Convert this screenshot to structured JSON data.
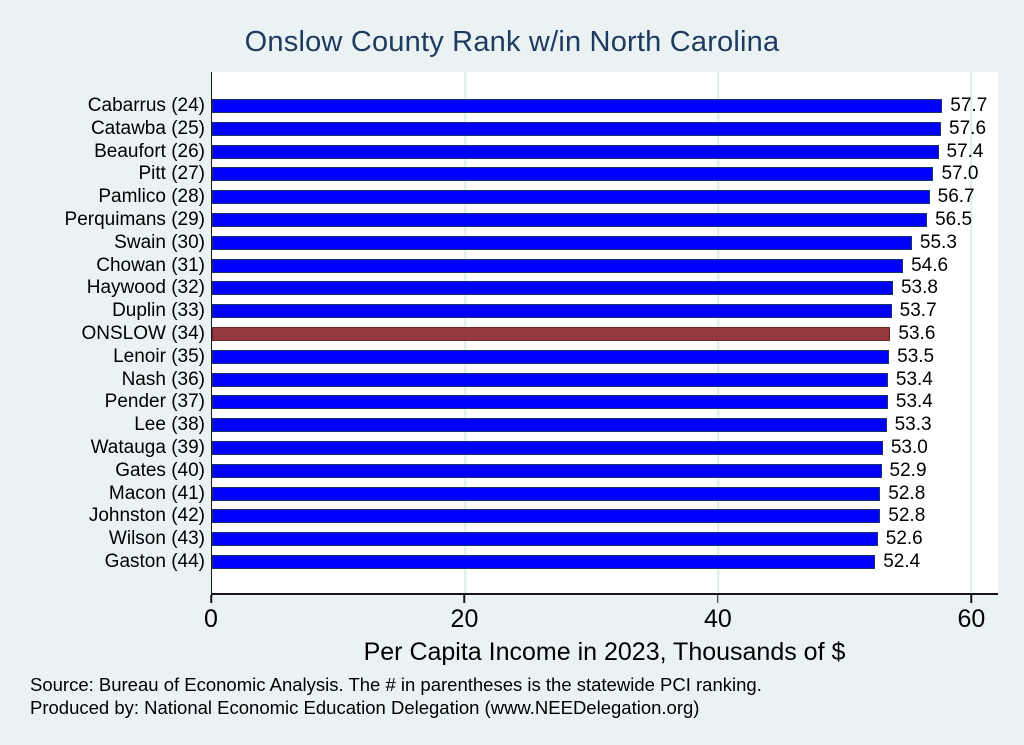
{
  "title": "Onslow County Rank w/in North Carolina",
  "chart_data": {
    "type": "bar",
    "orientation": "horizontal",
    "title": "Onslow County Rank w/in North Carolina",
    "xlabel": "Per Capita Income in 2023, Thousands of $",
    "xlim": [
      0,
      62.1
    ],
    "xticks": [
      0,
      20,
      40,
      60
    ],
    "grid": true,
    "legend": "none",
    "value_label_decimals": 1,
    "categories": [
      "Cabarrus (24)",
      "Catawba (25)",
      "Beaufort (26)",
      "Pitt (27)",
      "Pamlico (28)",
      "Perquimans (29)",
      "Swain (30)",
      "Chowan (31)",
      "Haywood (32)",
      "Duplin (33)",
      "ONSLOW (34)",
      "Lenoir (35)",
      "Nash (36)",
      "Pender (37)",
      "Lee (38)",
      "Watauga (39)",
      "Gates (40)",
      "Macon (41)",
      "Johnston (42)",
      "Wilson (43)",
      "Gaston (44)"
    ],
    "values": [
      57.7,
      57.6,
      57.4,
      57.0,
      56.7,
      56.5,
      55.3,
      54.6,
      53.8,
      53.7,
      53.6,
      53.5,
      53.4,
      53.4,
      53.3,
      53.0,
      52.9,
      52.8,
      52.8,
      52.6,
      52.4
    ],
    "highlight_index": 10,
    "highlight_category": "ONSLOW (34)"
  },
  "footer": {
    "line1": "Source: Bureau of Economic Analysis. The # in parentheses is the statewide PCI ranking.",
    "line2": "Produced by: National Economic Education Delegation (www.NEEDelegation.org)"
  },
  "colors": {
    "background": "#eaf2f3",
    "plot_background": "#ffffff",
    "gridline": "#e0ebee",
    "axis": "#161616",
    "title": "#1e3a5f",
    "bar": "#0000ff",
    "bar_border": "#19366b",
    "highlight": "#943a3f",
    "highlight_border": "#6f262b",
    "text": "#000000"
  }
}
